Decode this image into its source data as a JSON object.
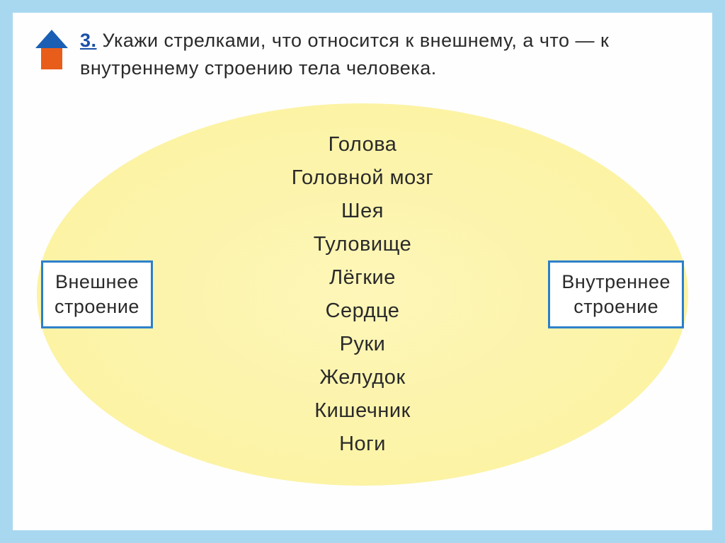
{
  "question": {
    "number": "3.",
    "text": "Укажи стрелками, что относится к внешнему, а что — к внутреннему строению тела человека."
  },
  "left_label": "Внешнее\nстроение",
  "right_label": "Внутреннее\nстроение",
  "words": [
    "Голова",
    "Головной  мозг",
    "Шея",
    "Туловище",
    "Лёгкие",
    "Сердце",
    "Руки",
    "Желудок",
    "Кишечник",
    "Ноги"
  ],
  "colors": {
    "page_border": "#a8d8f0",
    "box_border": "#2a7fc9",
    "ellipse_fill": "#fcf3a5",
    "number_color": "#1a4fa8",
    "house_roof": "#1a5fb4",
    "house_body": "#e85d1a"
  }
}
